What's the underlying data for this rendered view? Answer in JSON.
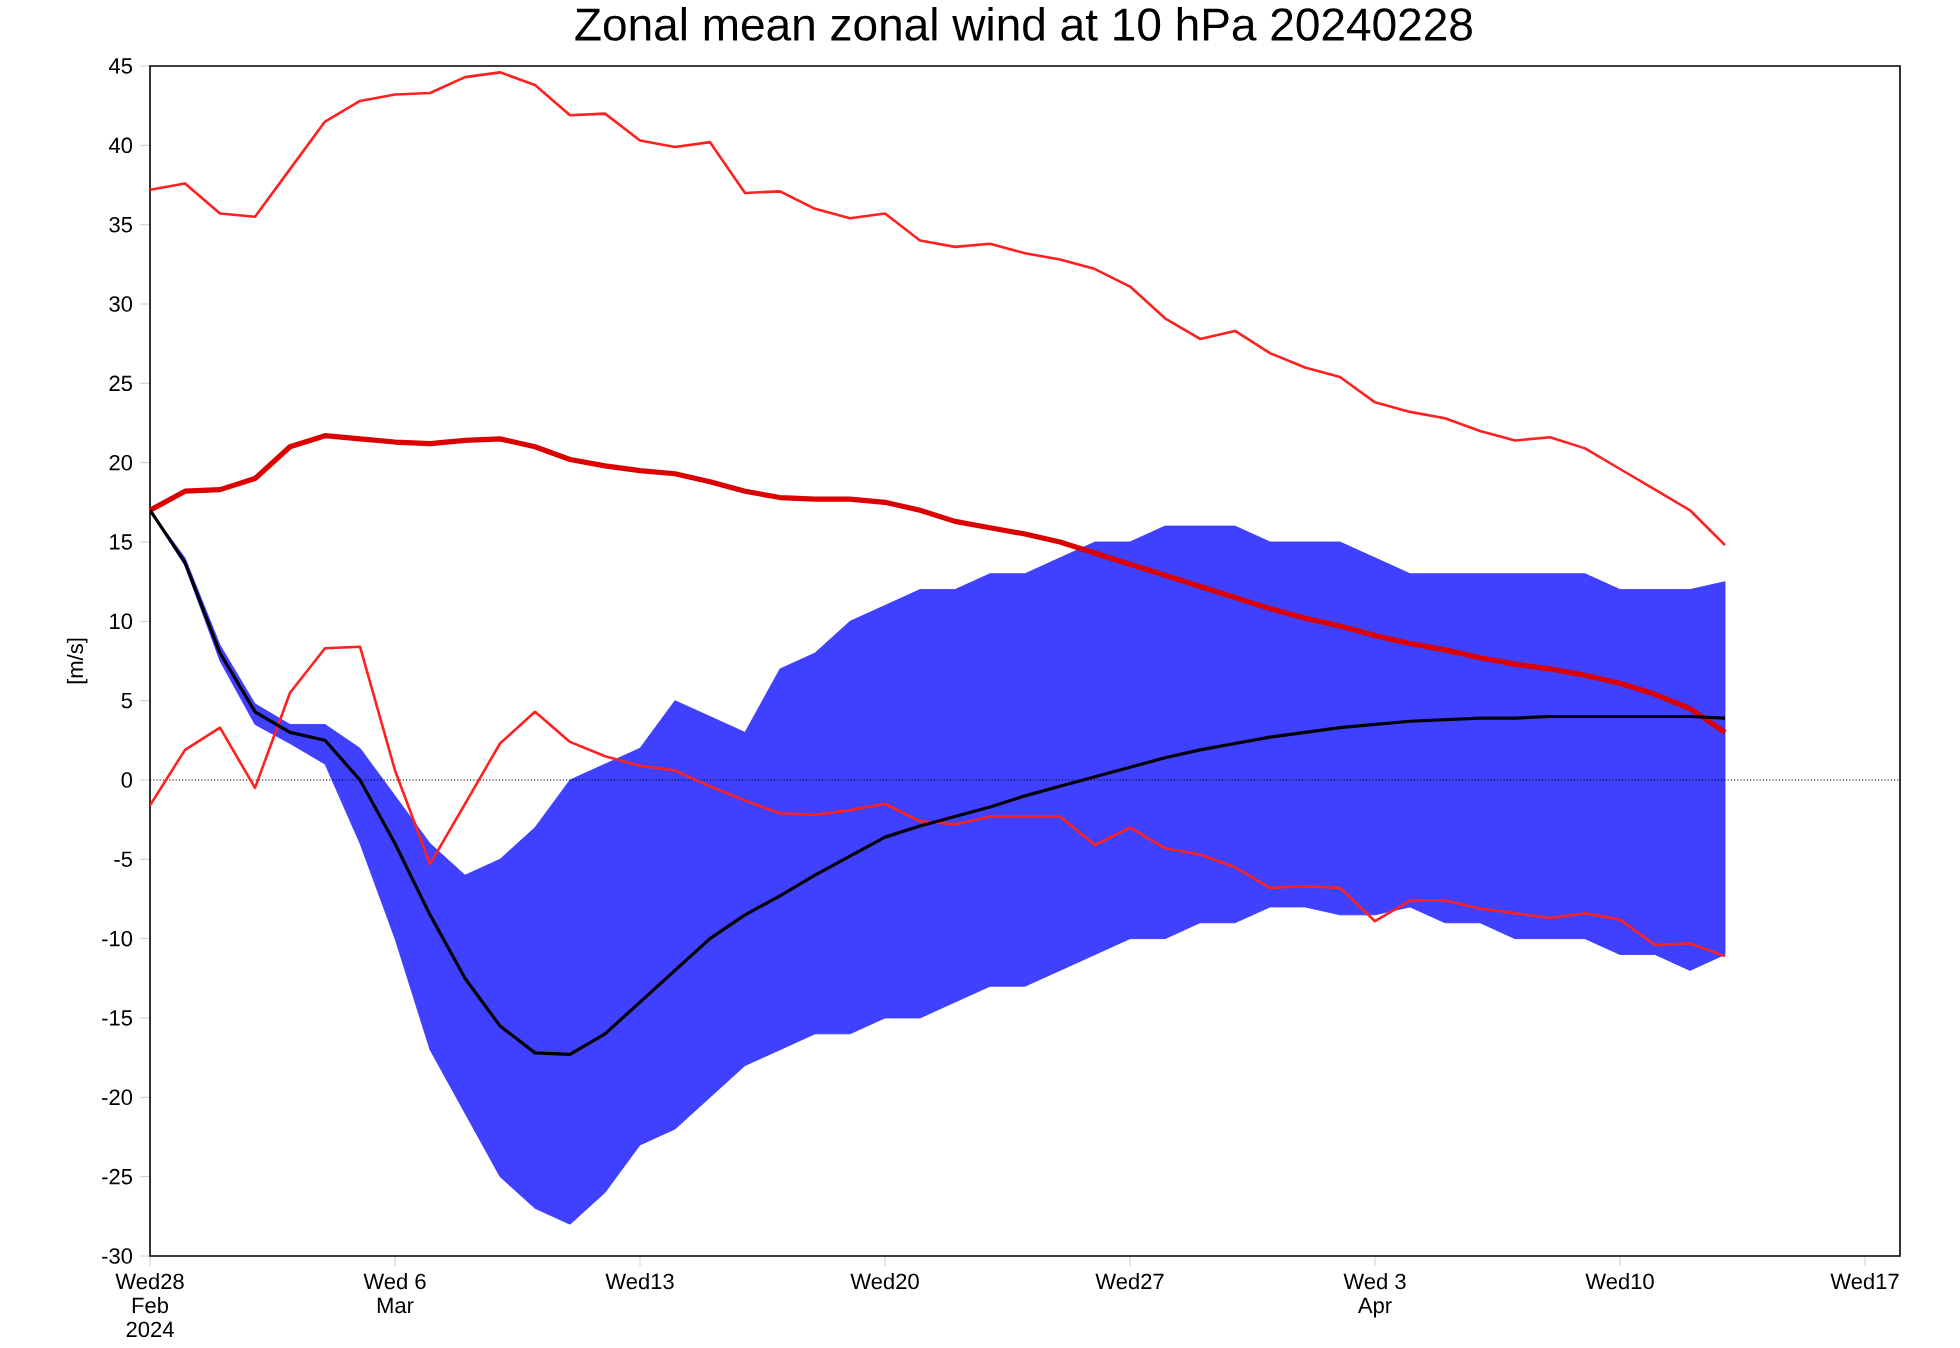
{
  "chart_data": {
    "type": "line",
    "title": "Zonal mean zonal wind at 10 hPa 20240228",
    "ylabel": "[m/s]",
    "x": [
      "2024-02-28",
      "2024-02-29",
      "2024-03-01",
      "2024-03-02",
      "2024-03-03",
      "2024-03-04",
      "2024-03-05",
      "2024-03-06",
      "2024-03-07",
      "2024-03-08",
      "2024-03-09",
      "2024-03-10",
      "2024-03-11",
      "2024-03-12",
      "2024-03-13",
      "2024-03-14",
      "2024-03-15",
      "2024-03-16",
      "2024-03-17",
      "2024-03-18",
      "2024-03-19",
      "2024-03-20",
      "2024-03-21",
      "2024-03-22",
      "2024-03-23",
      "2024-03-24",
      "2024-03-25",
      "2024-03-26",
      "2024-03-27",
      "2024-03-28",
      "2024-03-29",
      "2024-03-30",
      "2024-03-31",
      "2024-04-01",
      "2024-04-02",
      "2024-04-03",
      "2024-04-04",
      "2024-04-05",
      "2024-04-06",
      "2024-04-07",
      "2024-04-08",
      "2024-04-09",
      "2024-04-10",
      "2024-04-11",
      "2024-04-12",
      "2024-04-13"
    ],
    "series": [
      {
        "color": "#ff2020",
        "values": [
          37.2,
          37.6,
          35.7,
          35.5,
          38.5,
          41.5,
          42.8,
          43.2,
          43.3,
          44.3,
          44.6,
          43.8,
          41.9,
          42.0,
          40.3,
          39.9,
          40.2,
          37.0,
          37.1,
          36.0,
          35.4,
          35.7,
          34.0,
          33.6,
          33.8,
          33.2,
          32.8,
          32.2,
          31.1,
          29.1,
          27.8,
          28.3,
          26.9,
          26.0,
          25.4,
          23.8,
          23.2,
          22.8,
          22.0,
          21.4,
          21.6,
          20.9,
          19.6,
          18.3,
          17.0,
          14.8
        ]
      },
      {
        "color": "#ff2020",
        "values": [
          -1.6,
          1.9,
          3.3,
          -0.5,
          5.5,
          8.3,
          8.4,
          0.6,
          -5.3,
          -1.5,
          2.3,
          4.3,
          2.4,
          1.5,
          0.9,
          0.6,
          -0.4,
          -1.3,
          -2.1,
          -2.2,
          -1.9,
          -1.5,
          -2.6,
          -2.8,
          -2.3,
          -2.3,
          -2.3,
          -4.1,
          -3.0,
          -4.3,
          -4.7,
          -5.5,
          -6.8,
          -6.7,
          -6.8,
          -8.9,
          -7.6,
          -7.6,
          -8.1,
          -8.4,
          -8.7,
          -8.4,
          -8.8,
          -10.4,
          -10.3,
          -11.1
        ]
      },
      {
        "color": "#dd0000",
        "values": [
          17.0,
          18.2,
          18.3,
          19.0,
          21.0,
          21.7,
          21.5,
          21.3,
          21.2,
          21.4,
          21.5,
          21.0,
          20.2,
          19.8,
          19.5,
          19.3,
          18.8,
          18.2,
          17.8,
          17.7,
          17.7,
          17.5,
          17.0,
          16.3,
          15.9,
          15.5,
          15.0,
          14.3,
          13.6,
          12.9,
          12.2,
          11.5,
          10.8,
          10.2,
          9.7,
          9.1,
          8.6,
          8.2,
          7.7,
          7.3,
          7.0,
          6.6,
          6.1,
          5.4,
          4.5,
          3.0
        ]
      },
      {
        "color": "#000000",
        "values": [
          17.0,
          13.7,
          8.0,
          4.3,
          3.0,
          2.5,
          0.0,
          -4.0,
          -8.5,
          -12.5,
          -15.5,
          -17.2,
          -17.3,
          -16.0,
          -14.0,
          -12.0,
          -10.0,
          -8.5,
          -7.3,
          -6.0,
          -4.8,
          -3.6,
          -2.9,
          -2.3,
          -1.7,
          -1.0,
          -0.4,
          0.2,
          0.8,
          1.4,
          1.9,
          2.3,
          2.7,
          3.0,
          3.3,
          3.5,
          3.7,
          3.8,
          3.9,
          3.9,
          4.0,
          4.0,
          4.0,
          4.0,
          4.0,
          3.9
        ],
        "lower": [
          17,
          13.5,
          7.5,
          3.5,
          2.3,
          1.0,
          -4,
          -10,
          -17,
          -21,
          -25,
          -27,
          -28,
          -26,
          -23,
          -22,
          -20,
          -18,
          -17,
          -16,
          -16,
          -15,
          -15,
          -14,
          -13,
          -13,
          -12,
          -11,
          -10,
          -10,
          -9,
          -9,
          -8,
          -8,
          -8.5,
          -8.5,
          -8,
          -9,
          -9,
          -10,
          -10,
          -10,
          -11,
          -11,
          -12,
          -11
        ],
        "upper": [
          17,
          14,
          8.5,
          4.8,
          3.5,
          3.5,
          2,
          -1,
          -4,
          -6,
          -5,
          -3,
          0,
          1,
          2,
          5,
          4,
          3,
          7,
          8,
          10,
          11,
          12,
          12,
          13,
          13,
          14,
          15,
          15,
          16,
          16,
          16,
          15,
          15,
          15,
          14,
          13,
          13,
          13,
          13,
          13,
          13,
          12,
          12,
          12,
          12.5
        ]
      }
    ],
    "xlim": [
      "2024-02-28",
      "2024-04-18"
    ],
    "xticks": [
      {
        "value": "2024-02-28",
        "label": "Wed28\nFeb\n2024"
      },
      {
        "value": "2024-03-06",
        "label": "Wed 6\nMar"
      },
      {
        "value": "2024-03-13",
        "label": "Wed13"
      },
      {
        "value": "2024-03-20",
        "label": "Wed20"
      },
      {
        "value": "2024-03-27",
        "label": "Wed27"
      },
      {
        "value": "2024-04-03",
        "label": "Wed 3\nApr"
      },
      {
        "value": "2024-04-10",
        "label": "Wed10"
      },
      {
        "value": "2024-04-17",
        "label": "Wed17"
      }
    ],
    "ylim": [
      -30,
      45
    ],
    "yticks": [
      -30,
      -25,
      -20,
      -15,
      -10,
      -5,
      0,
      5,
      10,
      15,
      20,
      25,
      30,
      35,
      40,
      45
    ],
    "ref_lines": [
      {
        "axis": "y",
        "value": 0,
        "color": "#000000",
        "line_style": "dotted"
      }
    ],
    "grid": false,
    "marker": "none",
    "line_style": "solid"
  }
}
